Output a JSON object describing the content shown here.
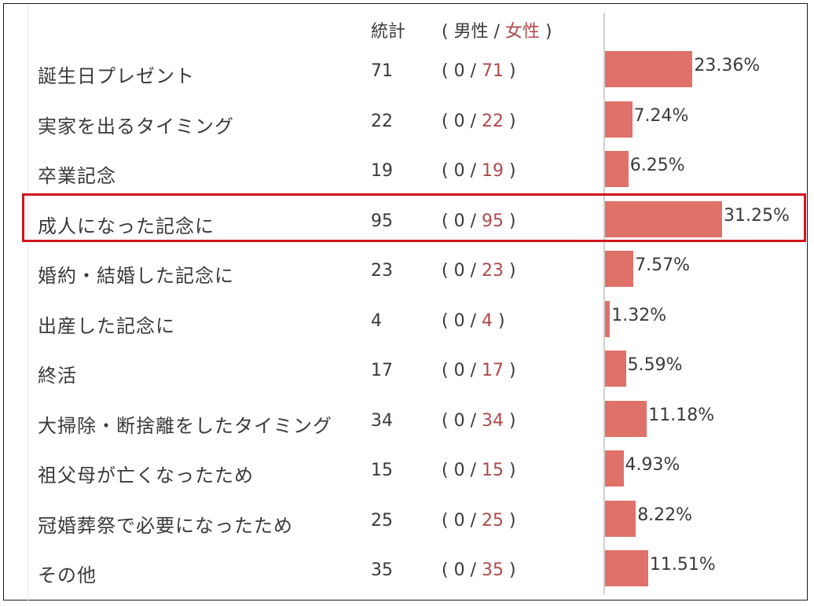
{
  "header": {
    "total_label": "統計",
    "open_paren": "( ",
    "male_label": "男性",
    "slash": " / ",
    "female_label": "女性",
    "close_paren": " )"
  },
  "chart_data": {
    "type": "bar",
    "orientation": "horizontal",
    "categories": [
      "誕生日プレゼント",
      "実家を出るタイミング",
      "卒業記念",
      "成人になった記念に",
      "婚約・結婚した記念に",
      "出産した記念に",
      "終活",
      "大掃除・断捨離をしたタイミング",
      "祖父母が亡くなったため",
      "冠婚葬祭で必要になったため",
      "その他"
    ],
    "totals": [
      71,
      22,
      19,
      95,
      23,
      4,
      17,
      34,
      15,
      25,
      35
    ],
    "male": [
      0,
      0,
      0,
      0,
      0,
      0,
      0,
      0,
      0,
      0,
      0
    ],
    "female": [
      71,
      22,
      19,
      95,
      23,
      4,
      17,
      34,
      15,
      25,
      35
    ],
    "percents": [
      "23.36%",
      "7.24%",
      "6.25%",
      "31.25%",
      "7.57%",
      "1.32%",
      "5.59%",
      "11.18%",
      "4.93%",
      "8.22%",
      "11.51%"
    ],
    "values": [
      23.36,
      7.24,
      6.25,
      31.25,
      7.57,
      1.32,
      5.59,
      11.18,
      4.93,
      8.22,
      11.51
    ],
    "highlighted_index": 3,
    "bar_color": "#e07168",
    "female_color": "#b04a4a",
    "highlight_color": "#d0161c"
  }
}
